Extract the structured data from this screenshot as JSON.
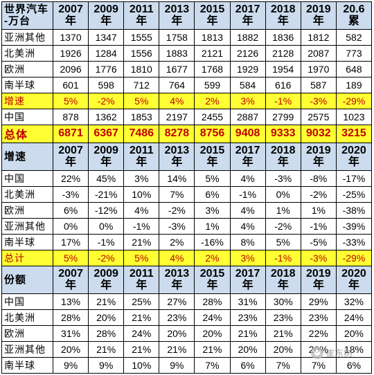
{
  "section1": {
    "header": {
      "label": "世界汽车\n-万台",
      "years": [
        "2007\n年",
        "2009\n年",
        "2011\n年",
        "2013\n年",
        "2015\n年",
        "2017\n年",
        "2018\n年",
        "2019\n年",
        "20.6\n累"
      ]
    },
    "rows": [
      {
        "label": "亚洲其他",
        "values": [
          "1370",
          "1347",
          "1555",
          "1758",
          "1813",
          "1882",
          "1836",
          "1812",
          "582"
        ]
      },
      {
        "label": "北美洲",
        "values": [
          "1926",
          "1284",
          "1556",
          "1883",
          "2121",
          "2126",
          "2128",
          "2087",
          "773"
        ]
      },
      {
        "label": "欧洲",
        "values": [
          "2096",
          "1776",
          "1810",
          "1677",
          "1768",
          "1929",
          "1954",
          "1970",
          "648"
        ]
      },
      {
        "label": "南半球",
        "values": [
          "601",
          "598",
          "712",
          "764",
          "599",
          "584",
          "616",
          "587",
          "189"
        ]
      }
    ],
    "growth_row": {
      "label": "增速",
      "values": [
        "5%",
        "-2%",
        "5%",
        "4%",
        "2%",
        "3%",
        "-1%",
        "-3%",
        "-29%"
      ]
    },
    "china_row": {
      "label": "中国",
      "values": [
        "878",
        "1362",
        "1853",
        "2197",
        "2455",
        "2887",
        "2799",
        "2575",
        "1023"
      ]
    },
    "total_row": {
      "label": "总体",
      "values": [
        "6871",
        "6367",
        "7486",
        "8278",
        "8756",
        "9408",
        "9333",
        "9032",
        "3215"
      ]
    }
  },
  "section2": {
    "header": {
      "label": "增速",
      "years": [
        "2007\n年",
        "2009\n年",
        "2011\n年",
        "2013\n年",
        "2015\n年",
        "2017\n年",
        "2018\n年",
        "2019\n年",
        "2020\n年"
      ]
    },
    "rows": [
      {
        "label": "中国",
        "values": [
          "22%",
          "45%",
          "3%",
          "14%",
          "5%",
          "4%",
          "-3%",
          "-8%",
          "-17%"
        ]
      },
      {
        "label": "北美洲",
        "values": [
          "-3%",
          "-21%",
          "10%",
          "7%",
          "6%",
          "-1%",
          "0%",
          "-2%",
          "-25%"
        ]
      },
      {
        "label": "欧洲",
        "values": [
          "6%",
          "-12%",
          "4%",
          "-2%",
          "3%",
          "4%",
          "1%",
          "1%",
          "-38%"
        ]
      },
      {
        "label": "亚洲其他",
        "values": [
          "0%",
          "0%",
          "-1%",
          "-3%",
          "1%",
          "4%",
          "-2%",
          "-1%",
          "-39%"
        ]
      },
      {
        "label": "南半球",
        "values": [
          "17%",
          "-1%",
          "21%",
          "2%",
          "-16%",
          "8%",
          "5%",
          "-5%",
          "-33%"
        ]
      }
    ],
    "total_row": {
      "label": "总计",
      "values": [
        "5%",
        "-2%",
        "5%",
        "4%",
        "2%",
        "3%",
        "-1%",
        "-3%",
        "-29%"
      ]
    }
  },
  "section3": {
    "header": {
      "label": "份额",
      "years": [
        "2007\n年",
        "2009\n年",
        "2011\n年",
        "2013\n年",
        "2015\n年",
        "2017\n年",
        "2018\n年",
        "2019\n年",
        "2020\n年"
      ]
    },
    "rows": [
      {
        "label": "中国",
        "values": [
          "13%",
          "21%",
          "25%",
          "27%",
          "28%",
          "31%",
          "30%",
          "29%",
          "32%"
        ]
      },
      {
        "label": "北美洲",
        "values": [
          "28%",
          "20%",
          "21%",
          "23%",
          "24%",
          "23%",
          "23%",
          "23%",
          "24%"
        ]
      },
      {
        "label": "欧洲",
        "values": [
          "31%",
          "28%",
          "24%",
          "20%",
          "20%",
          "21%",
          "21%",
          "22%",
          "20%"
        ]
      },
      {
        "label": "亚洲其他",
        "values": [
          "20%",
          "21%",
          "21%",
          "21%",
          "21%",
          "20%",
          "20%",
          "20%",
          "18%"
        ]
      },
      {
        "label": "南半球",
        "values": [
          "9%",
          "9%",
          "10%",
          "9%",
          "7%",
          "6%",
          "7%",
          "7%",
          "6%"
        ]
      }
    ]
  },
  "watermark": {
    "text": "崔东树",
    "icon": "wechat-icon"
  }
}
